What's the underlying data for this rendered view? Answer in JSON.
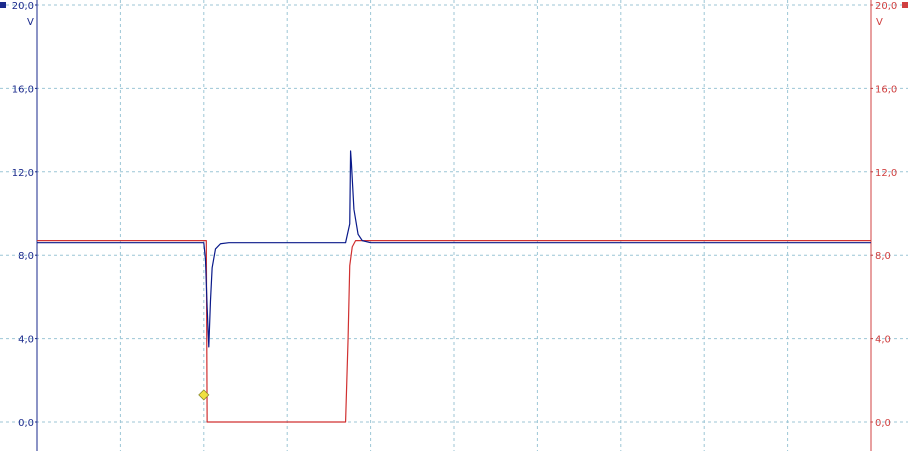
{
  "chart_data": {
    "type": "line",
    "grid": true,
    "x_divisions": 10,
    "x_range": [
      0,
      10
    ],
    "y_axes": [
      {
        "side": "left",
        "unit": "V",
        "range": [
          0,
          20
        ],
        "ticks": [
          "0,0",
          "4,0",
          "8,0",
          "12,0",
          "16,0",
          "20,0"
        ],
        "color": "#1a2a8c"
      },
      {
        "side": "right",
        "unit": "V",
        "range": [
          0,
          20
        ],
        "ticks": [
          "0,0",
          "4,0",
          "8,0",
          "12,0",
          "16,0",
          "20,0"
        ],
        "color": "#d04040"
      }
    ],
    "series": [
      {
        "axis": "left",
        "color": "#0a1a8a",
        "x": [
          0,
          2.0,
          2.02,
          2.04,
          2.06,
          2.08,
          2.1,
          2.14,
          2.2,
          2.3,
          2.5,
          3.0,
          3.5,
          3.7,
          3.75,
          3.76,
          3.77,
          3.8,
          3.85,
          3.9,
          4.0,
          5.0,
          6.0,
          7.0,
          8.0,
          9.0,
          10.0
        ],
        "y": [
          8.6,
          8.6,
          7.8,
          5.5,
          3.6,
          5.8,
          7.4,
          8.3,
          8.55,
          8.6,
          8.6,
          8.6,
          8.6,
          8.6,
          9.5,
          13.0,
          12.4,
          10.2,
          9.0,
          8.7,
          8.6,
          8.6,
          8.6,
          8.6,
          8.6,
          8.6,
          8.6
        ]
      },
      {
        "axis": "right",
        "color": "#d03030",
        "x": [
          0,
          2.03,
          2.04,
          3.7,
          3.73,
          3.75,
          3.78,
          3.82,
          3.9,
          10.0
        ],
        "y": [
          8.7,
          8.7,
          0.0,
          0.0,
          4.0,
          7.5,
          8.4,
          8.7,
          8.7,
          8.7
        ]
      }
    ],
    "trigger_marker": {
      "x": 2.0,
      "y": 1.3,
      "color": "#f0e040"
    },
    "channel_markers": [
      {
        "side": "left",
        "color": "#1a2a8c"
      },
      {
        "side": "right",
        "color": "#d04040"
      }
    ]
  }
}
